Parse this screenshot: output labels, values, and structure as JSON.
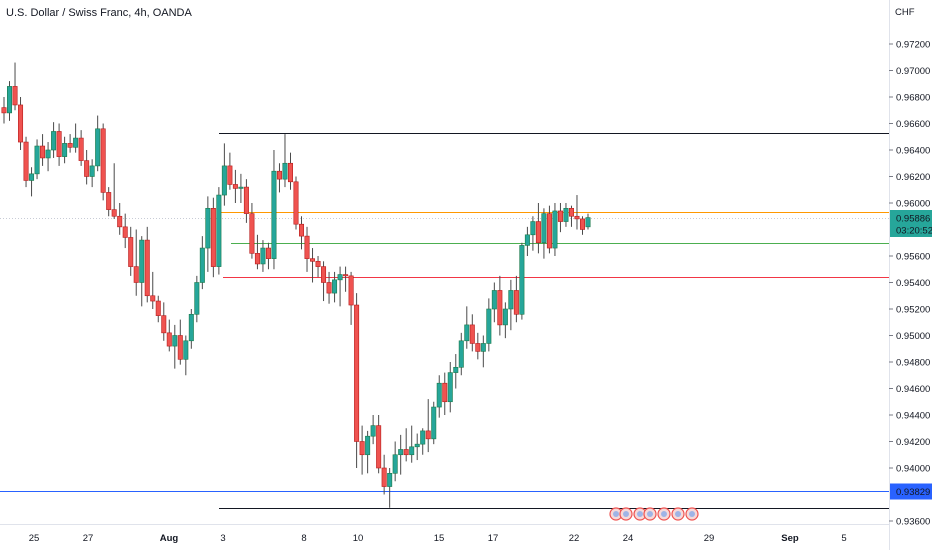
{
  "header": {
    "symbol_title": "U.S. Dollar / Swiss Franc, 4h, OANDA"
  },
  "price_axis": {
    "currency": "CHF",
    "ticks": [
      "0.97200",
      "0.97000",
      "0.96800",
      "0.96600",
      "0.96400",
      "0.96200",
      "0.96000",
      "0.95600",
      "0.95400",
      "0.95200",
      "0.95000",
      "0.94800",
      "0.94600",
      "0.94400",
      "0.94200",
      "0.94000",
      "0.93600"
    ]
  },
  "time_axis": {
    "labels": [
      {
        "text": "25",
        "bold": false
      },
      {
        "text": "27",
        "bold": false
      },
      {
        "text": "Aug",
        "bold": true
      },
      {
        "text": "3",
        "bold": false
      },
      {
        "text": "8",
        "bold": false
      },
      {
        "text": "10",
        "bold": false
      },
      {
        "text": "15",
        "bold": false
      },
      {
        "text": "17",
        "bold": false
      },
      {
        "text": "22",
        "bold": false
      },
      {
        "text": "24",
        "bold": false
      },
      {
        "text": "29",
        "bold": false
      },
      {
        "text": "Sep",
        "bold": true
      },
      {
        "text": "5",
        "bold": false
      }
    ]
  },
  "current_price": {
    "value": "0.95886",
    "countdown": "03:20:52",
    "color": "#26a69a"
  },
  "level_badge": {
    "value": "0.93829",
    "color": "#2962ff"
  },
  "colors": {
    "up": "#26a69a",
    "down": "#ef5350",
    "upBorder": "#1a7a4a",
    "downBorder": "#b71c1c"
  },
  "chart_data": {
    "type": "candlestick",
    "symbol": "USDCHF",
    "timeframe": "4h",
    "ylim": [
      0.9355,
      0.9735
    ],
    "horizontal_lines": [
      {
        "price": 0.9653,
        "color": "#131722"
      },
      {
        "price": 0.95935,
        "color": "#ff9800"
      },
      {
        "price": 0.957,
        "color": "#4caf50"
      },
      {
        "price": 0.95445,
        "color": "#f23645"
      },
      {
        "price": 0.93829,
        "color": "#2962ff"
      },
      {
        "price": 0.937,
        "color": "#131722"
      }
    ],
    "candles": [
      [
        0.9672,
        0.968,
        0.966,
        0.9668
      ],
      [
        0.9668,
        0.9692,
        0.9662,
        0.9688
      ],
      [
        0.9688,
        0.9706,
        0.967,
        0.9674
      ],
      [
        0.9674,
        0.968,
        0.964,
        0.9646
      ],
      [
        0.9646,
        0.965,
        0.9612,
        0.9617
      ],
      [
        0.9617,
        0.9627,
        0.9605,
        0.9622
      ],
      [
        0.9622,
        0.9648,
        0.9618,
        0.9643
      ],
      [
        0.9643,
        0.9652,
        0.9628,
        0.9634
      ],
      [
        0.9634,
        0.9646,
        0.9624,
        0.964
      ],
      [
        0.964,
        0.9661,
        0.9634,
        0.9654
      ],
      [
        0.9654,
        0.966,
        0.9628,
        0.9635
      ],
      [
        0.9635,
        0.965,
        0.963,
        0.9645
      ],
      [
        0.9645,
        0.9652,
        0.9638,
        0.9642
      ],
      [
        0.9642,
        0.966,
        0.9638,
        0.9649
      ],
      [
        0.9649,
        0.9655,
        0.9628,
        0.9632
      ],
      [
        0.9632,
        0.964,
        0.9614,
        0.962
      ],
      [
        0.962,
        0.9633,
        0.9612,
        0.9628
      ],
      [
        0.9628,
        0.9666,
        0.9624,
        0.9656
      ],
      [
        0.9656,
        0.966,
        0.9602,
        0.9608
      ],
      [
        0.9608,
        0.9612,
        0.959,
        0.9595
      ],
      [
        0.9595,
        0.963,
        0.9588,
        0.959
      ],
      [
        0.959,
        0.96,
        0.9576,
        0.9582
      ],
      [
        0.9582,
        0.9592,
        0.9566,
        0.9574
      ],
      [
        0.9574,
        0.9582,
        0.9545,
        0.9552
      ],
      [
        0.9552,
        0.958,
        0.953,
        0.954
      ],
      [
        0.954,
        0.9575,
        0.9522,
        0.9572
      ],
      [
        0.9572,
        0.9582,
        0.9525,
        0.953
      ],
      [
        0.953,
        0.9548,
        0.952,
        0.9526
      ],
      [
        0.9526,
        0.953,
        0.951,
        0.9515
      ],
      [
        0.9515,
        0.9525,
        0.9496,
        0.9502
      ],
      [
        0.9502,
        0.9512,
        0.9488,
        0.9492
      ],
      [
        0.9492,
        0.9508,
        0.9475,
        0.95
      ],
      [
        0.95,
        0.9512,
        0.9478,
        0.9482
      ],
      [
        0.9482,
        0.95,
        0.947,
        0.9496
      ],
      [
        0.9496,
        0.952,
        0.949,
        0.9516
      ],
      [
        0.9516,
        0.9545,
        0.951,
        0.954
      ],
      [
        0.954,
        0.9575,
        0.9535,
        0.9566
      ],
      [
        0.9566,
        0.9605,
        0.9548,
        0.9596
      ],
      [
        0.9596,
        0.9604,
        0.9544,
        0.9552
      ],
      [
        0.9552,
        0.9612,
        0.9546,
        0.9606
      ],
      [
        0.9606,
        0.9645,
        0.9598,
        0.9628
      ],
      [
        0.9628,
        0.9638,
        0.961,
        0.9614
      ],
      [
        0.9614,
        0.9625,
        0.96,
        0.9611
      ],
      [
        0.9611,
        0.9622,
        0.96,
        0.9612
      ],
      [
        0.9612,
        0.9618,
        0.9585,
        0.9592
      ],
      [
        0.9592,
        0.96,
        0.9558,
        0.9562
      ],
      [
        0.9562,
        0.9576,
        0.955,
        0.9554
      ],
      [
        0.9554,
        0.9572,
        0.9548,
        0.9566
      ],
      [
        0.9566,
        0.957,
        0.955,
        0.9558
      ],
      [
        0.9558,
        0.964,
        0.955,
        0.9624
      ],
      [
        0.9624,
        0.963,
        0.9608,
        0.9618
      ],
      [
        0.9618,
        0.9652,
        0.9612,
        0.963
      ],
      [
        0.963,
        0.9638,
        0.961,
        0.9616
      ],
      [
        0.9616,
        0.962,
        0.958,
        0.9584
      ],
      [
        0.9584,
        0.959,
        0.9565,
        0.9575
      ],
      [
        0.9575,
        0.9582,
        0.9548,
        0.9558
      ],
      [
        0.9558,
        0.9566,
        0.954,
        0.9556
      ],
      [
        0.9556,
        0.956,
        0.9544,
        0.9552
      ],
      [
        0.9552,
        0.9556,
        0.9526,
        0.954
      ],
      [
        0.954,
        0.9548,
        0.9524,
        0.9532
      ],
      [
        0.9532,
        0.9548,
        0.9525,
        0.9542
      ],
      [
        0.9542,
        0.9552,
        0.9522,
        0.9546
      ],
      [
        0.9546,
        0.9552,
        0.9533,
        0.9545
      ],
      [
        0.9545,
        0.9548,
        0.9508,
        0.9523
      ],
      [
        0.9523,
        0.9532,
        0.94,
        0.942
      ],
      [
        0.942,
        0.9432,
        0.9395,
        0.941
      ],
      [
        0.941,
        0.9428,
        0.9396,
        0.9424
      ],
      [
        0.9424,
        0.944,
        0.9418,
        0.9432
      ],
      [
        0.9432,
        0.944,
        0.9396,
        0.94
      ],
      [
        0.94,
        0.941,
        0.938,
        0.9386
      ],
      [
        0.9386,
        0.94,
        0.937,
        0.9396
      ],
      [
        0.9396,
        0.942,
        0.939,
        0.941
      ],
      [
        0.941,
        0.9425,
        0.9395,
        0.9414
      ],
      [
        0.9414,
        0.943,
        0.9405,
        0.941
      ],
      [
        0.941,
        0.9432,
        0.9404,
        0.9416
      ],
      [
        0.9416,
        0.9426,
        0.9406,
        0.9418
      ],
      [
        0.9418,
        0.943,
        0.941,
        0.9428
      ],
      [
        0.9428,
        0.9452,
        0.9412,
        0.9422
      ],
      [
        0.9422,
        0.945,
        0.9418,
        0.9446
      ],
      [
        0.9446,
        0.947,
        0.9438,
        0.9464
      ],
      [
        0.9464,
        0.9472,
        0.944,
        0.945
      ],
      [
        0.945,
        0.948,
        0.9442,
        0.9472
      ],
      [
        0.9472,
        0.9486,
        0.946,
        0.9476
      ],
      [
        0.9476,
        0.9502,
        0.947,
        0.9496
      ],
      [
        0.9496,
        0.9522,
        0.949,
        0.9508
      ],
      [
        0.9508,
        0.9516,
        0.9488,
        0.9494
      ],
      [
        0.9494,
        0.9502,
        0.9482,
        0.9488
      ],
      [
        0.9488,
        0.95,
        0.9476,
        0.9494
      ],
      [
        0.9494,
        0.9528,
        0.9488,
        0.952
      ],
      [
        0.952,
        0.954,
        0.951,
        0.9534
      ],
      [
        0.9534,
        0.9545,
        0.95,
        0.9508
      ],
      [
        0.9508,
        0.9525,
        0.9498,
        0.952
      ],
      [
        0.952,
        0.9542,
        0.9504,
        0.9534
      ],
      [
        0.9534,
        0.9545,
        0.951,
        0.9516
      ],
      [
        0.9516,
        0.957,
        0.9512,
        0.9568
      ],
      [
        0.9568,
        0.9582,
        0.956,
        0.9576
      ],
      [
        0.9576,
        0.959,
        0.9564,
        0.9586
      ],
      [
        0.9586,
        0.96,
        0.9562,
        0.957
      ],
      [
        0.957,
        0.9596,
        0.9558,
        0.9592
      ],
      [
        0.9592,
        0.9598,
        0.9562,
        0.9566
      ],
      [
        0.9566,
        0.96,
        0.956,
        0.9594
      ],
      [
        0.9594,
        0.96,
        0.9578,
        0.9586
      ],
      [
        0.9586,
        0.96,
        0.9582,
        0.9596
      ],
      [
        0.9596,
        0.9598,
        0.9582,
        0.959
      ],
      [
        0.959,
        0.9606,
        0.958,
        0.9588
      ],
      [
        0.9588,
        0.959,
        0.9576,
        0.958
      ],
      [
        0.9582,
        0.9592,
        0.958,
        0.9589
      ]
    ]
  }
}
